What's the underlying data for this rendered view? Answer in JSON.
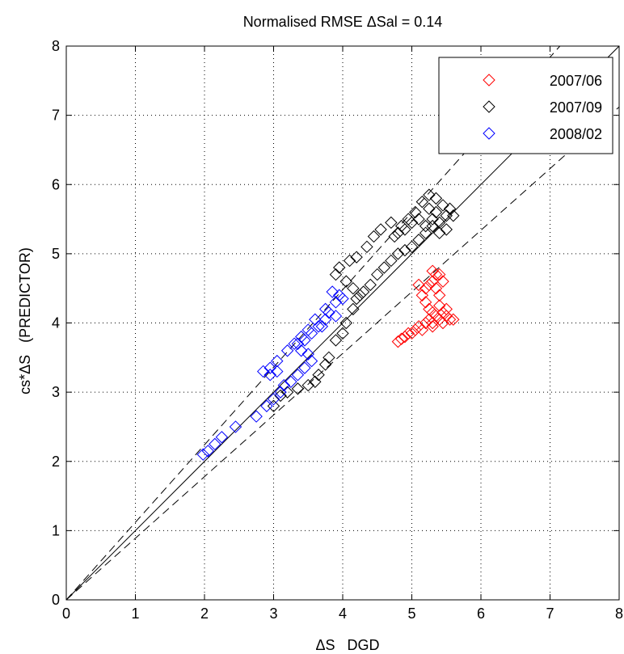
{
  "chart_data": {
    "type": "scatter",
    "title": "Normalised RMSE ΔSal = 0.14",
    "xlabel": "ΔS   DGD",
    "ylabel": "cs*ΔS   (PREDICTOR)",
    "xlim": [
      0,
      8
    ],
    "ylim": [
      0,
      8
    ],
    "xticks": [
      "0",
      "1",
      "2",
      "3",
      "4",
      "5",
      "6",
      "7",
      "8"
    ],
    "yticks": [
      "0",
      "1",
      "2",
      "3",
      "4",
      "5",
      "6",
      "7",
      "8"
    ],
    "grid": true,
    "legend_position": "top-right",
    "marker": "diamond",
    "reference_lines": [
      {
        "style": "solid",
        "slope": 1.0
      },
      {
        "style": "dashed",
        "slope": 1.12
      },
      {
        "style": "dashed",
        "slope": 0.89
      }
    ],
    "series": [
      {
        "name": "2007/06",
        "color": "#ff0000",
        "points": [
          [
            4.8,
            3.73
          ],
          [
            4.85,
            3.77
          ],
          [
            4.9,
            3.8
          ],
          [
            4.95,
            3.85
          ],
          [
            5.0,
            3.85
          ],
          [
            5.05,
            3.9
          ],
          [
            5.1,
            3.95
          ],
          [
            5.15,
            3.9
          ],
          [
            5.2,
            4.0
          ],
          [
            5.25,
            4.05
          ],
          [
            5.3,
            4.0
          ],
          [
            5.35,
            4.1
          ],
          [
            5.4,
            4.05
          ],
          [
            5.45,
            4.15
          ],
          [
            5.5,
            4.1
          ],
          [
            5.55,
            4.05
          ],
          [
            5.6,
            4.05
          ],
          [
            5.5,
            4.2
          ],
          [
            5.4,
            4.25
          ],
          [
            5.3,
            4.15
          ],
          [
            5.2,
            4.3
          ],
          [
            5.15,
            4.4
          ],
          [
            5.2,
            4.5
          ],
          [
            5.25,
            4.55
          ],
          [
            5.3,
            4.6
          ],
          [
            5.35,
            4.7
          ],
          [
            5.3,
            4.75
          ],
          [
            5.4,
            4.7
          ],
          [
            5.45,
            4.6
          ],
          [
            5.35,
            4.5
          ],
          [
            5.4,
            4.4
          ],
          [
            5.25,
            4.2
          ],
          [
            5.1,
            4.55
          ],
          [
            5.45,
            4.0
          ],
          [
            5.3,
            3.95
          ]
        ]
      },
      {
        "name": "2007/09",
        "color": "#000000",
        "points": [
          [
            3.0,
            2.8
          ],
          [
            3.1,
            2.95
          ],
          [
            3.2,
            3.0
          ],
          [
            3.35,
            3.05
          ],
          [
            3.5,
            3.1
          ],
          [
            3.6,
            3.15
          ],
          [
            3.65,
            3.25
          ],
          [
            3.75,
            3.4
          ],
          [
            3.8,
            3.5
          ],
          [
            3.9,
            3.75
          ],
          [
            4.0,
            3.85
          ],
          [
            4.05,
            4.0
          ],
          [
            4.15,
            4.2
          ],
          [
            4.2,
            4.35
          ],
          [
            4.3,
            4.45
          ],
          [
            4.4,
            4.55
          ],
          [
            4.5,
            4.7
          ],
          [
            4.6,
            4.8
          ],
          [
            4.7,
            4.9
          ],
          [
            4.8,
            5.0
          ],
          [
            4.9,
            5.05
          ],
          [
            5.0,
            5.1
          ],
          [
            5.1,
            5.2
          ],
          [
            5.2,
            5.3
          ],
          [
            5.3,
            5.4
          ],
          [
            5.4,
            5.45
          ],
          [
            5.5,
            5.55
          ],
          [
            5.6,
            5.55
          ],
          [
            5.55,
            5.65
          ],
          [
            5.45,
            5.7
          ],
          [
            5.35,
            5.6
          ],
          [
            5.25,
            5.65
          ],
          [
            5.15,
            5.75
          ],
          [
            5.25,
            5.85
          ],
          [
            5.35,
            5.8
          ],
          [
            5.1,
            5.5
          ],
          [
            5.0,
            5.45
          ],
          [
            4.9,
            5.35
          ],
          [
            4.8,
            5.3
          ],
          [
            4.75,
            5.25
          ],
          [
            4.85,
            5.4
          ],
          [
            4.95,
            5.5
          ],
          [
            5.05,
            5.6
          ],
          [
            4.7,
            5.45
          ],
          [
            4.55,
            5.35
          ],
          [
            4.45,
            5.25
          ],
          [
            4.35,
            5.1
          ],
          [
            4.2,
            4.95
          ],
          [
            4.1,
            4.9
          ],
          [
            3.95,
            4.8
          ],
          [
            3.9,
            4.7
          ],
          [
            4.05,
            4.6
          ],
          [
            4.15,
            4.5
          ],
          [
            4.25,
            4.4
          ],
          [
            5.3,
            5.5
          ],
          [
            5.4,
            5.3
          ],
          [
            5.2,
            5.4
          ],
          [
            5.5,
            5.35
          ]
        ]
      },
      {
        "name": "2008/02",
        "color": "#0000ff",
        "points": [
          [
            1.98,
            2.1
          ],
          [
            2.05,
            2.15
          ],
          [
            2.15,
            2.25
          ],
          [
            2.25,
            2.35
          ],
          [
            2.45,
            2.5
          ],
          [
            2.75,
            2.65
          ],
          [
            2.9,
            2.8
          ],
          [
            3.0,
            2.9
          ],
          [
            3.1,
            3.0
          ],
          [
            3.15,
            3.1
          ],
          [
            3.25,
            3.15
          ],
          [
            3.35,
            3.25
          ],
          [
            3.45,
            3.35
          ],
          [
            3.55,
            3.45
          ],
          [
            3.5,
            3.55
          ],
          [
            3.4,
            3.6
          ],
          [
            3.35,
            3.7
          ],
          [
            3.45,
            3.75
          ],
          [
            3.55,
            3.85
          ],
          [
            3.65,
            3.95
          ],
          [
            3.75,
            4.05
          ],
          [
            3.8,
            4.15
          ],
          [
            3.9,
            4.3
          ],
          [
            3.95,
            4.4
          ],
          [
            3.85,
            4.45
          ],
          [
            4.0,
            4.35
          ],
          [
            3.75,
            4.2
          ],
          [
            3.6,
            4.05
          ],
          [
            3.5,
            3.9
          ],
          [
            3.4,
            3.8
          ],
          [
            3.3,
            3.7
          ],
          [
            3.2,
            3.6
          ],
          [
            3.05,
            3.45
          ],
          [
            2.95,
            3.35
          ],
          [
            2.85,
            3.3
          ],
          [
            2.95,
            3.25
          ],
          [
            3.05,
            3.3
          ],
          [
            3.7,
            3.95
          ],
          [
            3.9,
            4.1
          ]
        ]
      }
    ]
  }
}
